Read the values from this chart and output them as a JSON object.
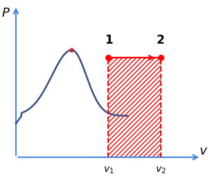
{
  "bg_color": "#ffffff",
  "axis_color": "#4488dd",
  "curve_color": "#3a5080",
  "red_color": "#ff0000",
  "black_color": "#000000",
  "v1": 0.55,
  "v2": 0.82,
  "p_isobar": 0.68,
  "label1": "1",
  "label2": "2",
  "ylabel_italic": "P",
  "xlabel_italic": "v",
  "v1_label": "$v_1$",
  "v2_label": "$v_2$",
  "dot_size": 5.5,
  "peak_dot_size": 3.5,
  "peak_dot_color": "#cc2222",
  "lw_axis": 1.5,
  "lw_curve": 1.8,
  "lw_red": 1.5
}
